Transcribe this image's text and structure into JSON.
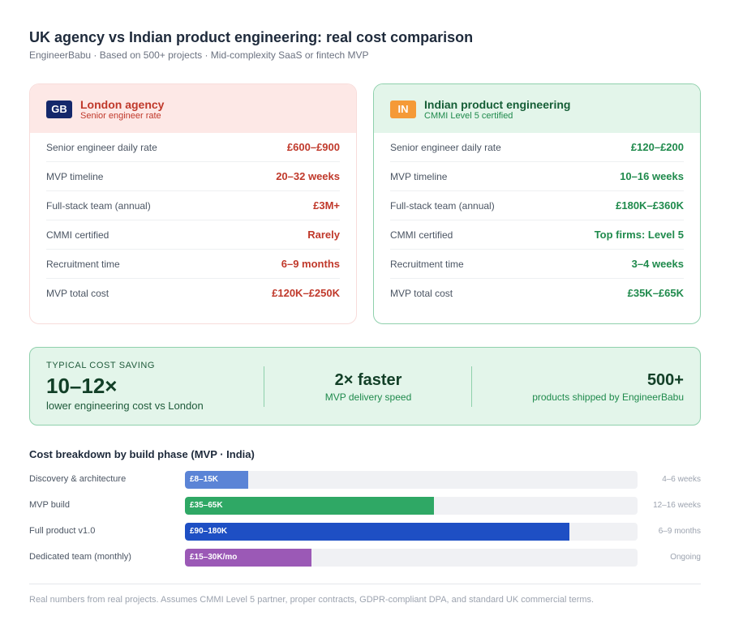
{
  "header": {
    "title": "UK agency vs Indian product engineering: real cost comparison",
    "subtitle": "EngineerBabu · Based on 500+ projects · Mid-complexity SaaS or fintech MVP"
  },
  "uk_card": {
    "flag": "GB",
    "name": "London agency",
    "sub": "Senior engineer rate",
    "accent": "#c0392b",
    "rows": [
      {
        "label": "Senior engineer daily rate",
        "value": "£600–£900"
      },
      {
        "label": "MVP timeline",
        "value": "20–32 weeks"
      },
      {
        "label": "Full-stack team (annual)",
        "value": "£3M+"
      },
      {
        "label": "CMMI certified",
        "value": "Rarely"
      },
      {
        "label": "Recruitment time",
        "value": "6–9 months"
      },
      {
        "label": "MVP total cost",
        "value": "£120K–£250K"
      }
    ]
  },
  "in_card": {
    "flag": "IN",
    "name": "Indian product engineering",
    "sub": "CMMI Level 5 certified",
    "accent": "#1f8a4c",
    "rows": [
      {
        "label": "Senior engineer daily rate",
        "value": "£120–£200"
      },
      {
        "label": "MVP timeline",
        "value": "10–16 weeks"
      },
      {
        "label": "Full-stack team (annual)",
        "value": "£180K–£360K"
      },
      {
        "label": "CMMI certified",
        "value": "Top firms: Level 5"
      },
      {
        "label": "Recruitment time",
        "value": "3–4 weeks"
      },
      {
        "label": "MVP total cost",
        "value": "£35K–£65K"
      }
    ]
  },
  "banner": {
    "kicker": "TYPICAL COST SAVING",
    "big": "10–12×",
    "desc": "lower engineering cost vs London",
    "mid_value": "2× faster",
    "mid_label": "MVP delivery speed",
    "right_value": "500+",
    "right_label": "products shipped by EngineerBabu"
  },
  "breakdown_title": "Cost breakdown by build phase (MVP · India)",
  "chart_data": {
    "type": "bar",
    "orientation": "horizontal",
    "title": "Cost breakdown by build phase (MVP · India)",
    "categories": [
      "Discovery & architecture",
      "MVP build",
      "Full product v1.0",
      "Dedicated team (monthly)"
    ],
    "value_labels": [
      "£8–15K",
      "£35–65K",
      "£90–180K",
      "£15–30K/mo"
    ],
    "durations": [
      "4–6 weeks",
      "12–16 weeks",
      "6–9 months",
      "Ongoing"
    ],
    "fill_fraction": [
      0.14,
      0.55,
      0.85,
      0.28
    ],
    "colors": [
      "#5b84d6",
      "#2fa865",
      "#1e4fc4",
      "#9b59b6"
    ]
  },
  "footer": "Real numbers from real projects. Assumes CMMI Level 5 partner, proper contracts, GDPR-compliant DPA, and standard UK commercial terms."
}
